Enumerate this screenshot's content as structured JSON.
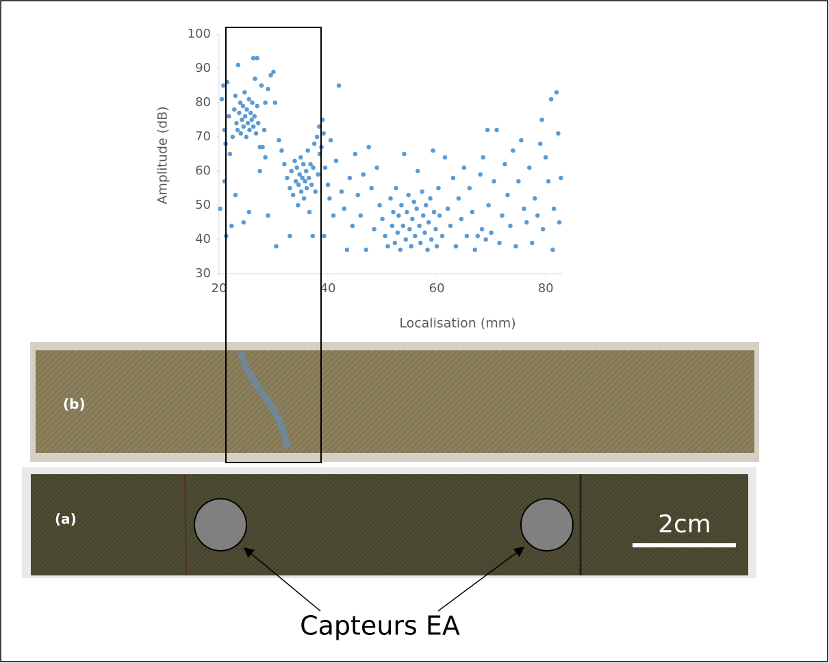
{
  "chart_data": {
    "type": "scatter",
    "x_label": "Localisation (mm)",
    "y_label": "Amplitude (dB)",
    "xlim": [
      20,
      83
    ],
    "xticks": [
      20,
      40,
      60,
      80
    ],
    "ylim": [
      30,
      100
    ],
    "yticks": [
      30,
      40,
      50,
      60,
      70,
      80,
      90,
      100
    ],
    "grid": false,
    "series": [
      {
        "color": "#5b9bd5",
        "x": [
          20.2,
          20.5,
          20.8,
          21.0,
          21.2,
          21.5,
          21.0,
          21.3,
          21.8,
          22.0,
          22.3,
          22.5,
          22.8,
          23.0,
          23.2,
          23.5,
          23.4,
          23.7,
          23.9,
          24.0,
          24.2,
          24.4,
          24.5,
          24.7,
          24.8,
          25.0,
          25.1,
          25.3,
          25.5,
          25.6,
          25.8,
          26.0,
          26.1,
          26.3,
          26.5,
          26.6,
          26.8,
          27.0,
          27.2,
          27.5,
          27.0,
          26.3,
          27.8,
          28.0,
          28.3,
          28.5,
          29.0,
          29.5,
          30.0,
          30.3,
          30.5,
          29.0,
          25.5,
          23.0,
          24.5,
          27.5,
          28.5,
          31.0,
          31.5,
          32.0,
          32.5,
          33.0,
          33.0,
          33.3,
          33.6,
          33.9,
          34.1,
          34.3,
          34.5,
          34.6,
          34.8,
          35.0,
          35.1,
          35.3,
          35.5,
          35.6,
          35.8,
          36.0,
          36.1,
          36.3,
          36.5,
          36.6,
          36.8,
          37.0,
          37.2,
          37.3,
          37.5,
          37.7,
          38.0,
          38.2,
          38.4,
          38.5,
          38.8,
          39.0,
          39.2,
          39.3,
          39.5,
          40.0,
          40.3,
          40.5,
          41.0,
          41.5,
          42.0,
          42.5,
          43.0,
          43.5,
          44.0,
          44.5,
          45.0,
          45.5,
          46.0,
          46.5,
          47.0,
          47.5,
          48.0,
          48.5,
          49.0,
          49.5,
          50.0,
          50.5,
          51.0,
          51.5,
          51.8,
          52.0,
          52.3,
          52.5,
          52.8,
          53.0,
          53.3,
          53.5,
          53.8,
          54.0,
          54.3,
          54.5,
          54.8,
          55.0,
          55.3,
          55.5,
          55.8,
          56.0,
          56.3,
          56.5,
          56.8,
          57.0,
          57.3,
          57.5,
          57.8,
          58.0,
          58.3,
          58.5,
          58.8,
          59.0,
          59.3,
          59.5,
          59.8,
          60.0,
          60.3,
          60.5,
          61.0,
          61.5,
          62.0,
          62.5,
          63.0,
          63.5,
          64.0,
          64.5,
          65.0,
          65.5,
          66.0,
          66.5,
          67.0,
          67.5,
          68.0,
          68.3,
          68.5,
          69.0,
          69.3,
          69.5,
          70.0,
          70.5,
          71.0,
          71.5,
          72.0,
          72.5,
          73.0,
          73.5,
          74.0,
          74.5,
          75.0,
          75.5,
          76.0,
          76.5,
          77.0,
          77.5,
          78.0,
          78.5,
          79.0,
          79.3,
          79.5,
          80.0,
          80.5,
          81.0,
          81.3,
          81.5,
          82.0,
          82.3,
          82.5,
          82.8
        ],
        "values": [
          49,
          81,
          85,
          72,
          68,
          86,
          57,
          41,
          76,
          65,
          44,
          70,
          78,
          82,
          74,
          91,
          72,
          77,
          80,
          71,
          75,
          79,
          73,
          83,
          76,
          70,
          78,
          74,
          81,
          72,
          77,
          75,
          80,
          73,
          76,
          87,
          71,
          79,
          74,
          67,
          93,
          93,
          85,
          67,
          72,
          80,
          84,
          88,
          89,
          80,
          38,
          47,
          48,
          53,
          45,
          60,
          64,
          69,
          66,
          62,
          58,
          41,
          55,
          60,
          53,
          63,
          57,
          61,
          50,
          56,
          59,
          64,
          54,
          58,
          62,
          52,
          57,
          60,
          55,
          66,
          58,
          48,
          62,
          56,
          41,
          61,
          68,
          54,
          70,
          59,
          73,
          65,
          67,
          75,
          71,
          41,
          61,
          56,
          52,
          69,
          47,
          63,
          85,
          54,
          49,
          37,
          58,
          44,
          65,
          53,
          47,
          59,
          37,
          67,
          55,
          43,
          61,
          50,
          46,
          41,
          38,
          52,
          44,
          48,
          39,
          55,
          42,
          47,
          37,
          50,
          44,
          65,
          40,
          48,
          53,
          43,
          38,
          46,
          51,
          41,
          49,
          60,
          44,
          39,
          54,
          47,
          42,
          50,
          37,
          45,
          52,
          40,
          66,
          48,
          43,
          38,
          55,
          47,
          41,
          64,
          49,
          44,
          58,
          38,
          52,
          46,
          61,
          41,
          55,
          48,
          37,
          41,
          59,
          43,
          64,
          40,
          72,
          50,
          42,
          57,
          72,
          39,
          47,
          62,
          53,
          44,
          66,
          38,
          57,
          69,
          49,
          45,
          61,
          39,
          52,
          47,
          68,
          75,
          43,
          64,
          57,
          81,
          37,
          49,
          83,
          71,
          45,
          58
        ]
      }
    ]
  },
  "photos": {
    "top_label": "(b)",
    "bottom_label": "(a)",
    "scale_bar": "2cm",
    "sensor_caption": "Capteurs EA"
  }
}
